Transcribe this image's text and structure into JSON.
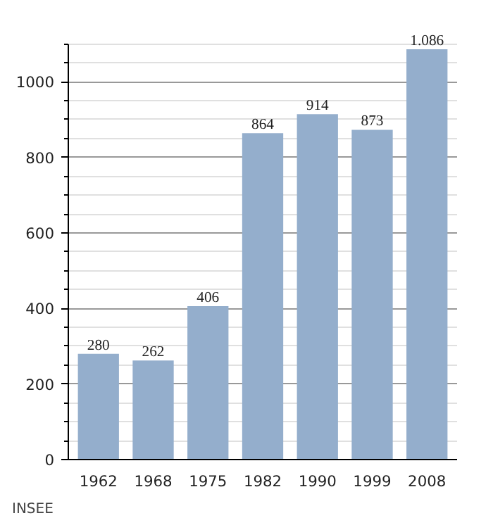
{
  "chart_data": {
    "type": "bar",
    "categories": [
      "1962",
      "1968",
      "1975",
      "1982",
      "1990",
      "1999",
      "2008"
    ],
    "values": [
      280,
      262,
      406,
      864,
      914,
      873,
      1086
    ],
    "value_labels": [
      "280",
      "262",
      "406",
      "864",
      "914",
      "873",
      "1.086"
    ],
    "color": "#94aecc",
    "ylim": [
      0,
      1100
    ],
    "yticks": [
      0,
      {
        "value": 50,
        "label": null
      },
      {
        "value": 100,
        "label": null
      },
      {
        "value": 150,
        "label": null
      },
      200,
      {
        "value": 250,
        "label": null
      },
      {
        "value": 300,
        "label": null
      },
      {
        "value": 350,
        "label": null
      },
      400,
      {
        "value": 450,
        "label": null
      },
      {
        "value": 500,
        "label": null
      },
      {
        "value": 550,
        "label": null
      },
      600,
      {
        "value": 650,
        "label": null
      },
      {
        "value": 700,
        "label": null
      },
      {
        "value": 750,
        "label": null
      },
      800,
      {
        "value": 850,
        "label": null
      },
      {
        "value": 900,
        "label": null
      },
      {
        "value": 950,
        "label": null
      },
      1000,
      {
        "value": 1050,
        "label": null
      },
      {
        "value": 1100,
        "label": null
      }
    ],
    "grid": "y",
    "annotations": [
      "INSEE"
    ]
  }
}
